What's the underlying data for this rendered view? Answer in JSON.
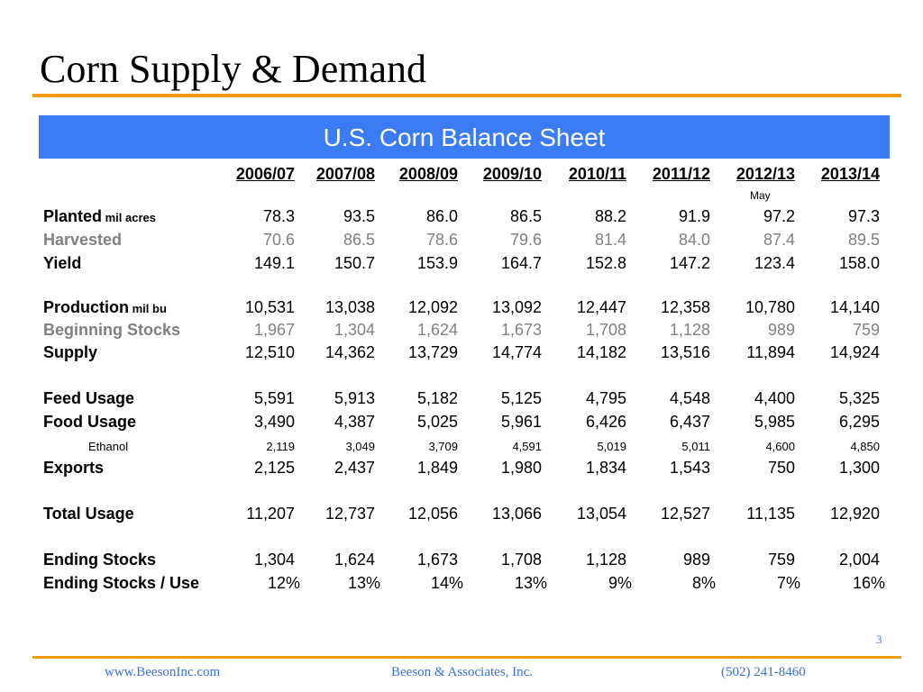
{
  "title": "Corn Supply & Demand",
  "band_title": "U.S. Corn Balance Sheet",
  "columns": [
    "2006/07",
    "2007/08",
    "2008/09",
    "2009/10",
    "2010/11",
    "2011/12",
    "2012/13",
    "2013/14"
  ],
  "col_note": "May",
  "rows": [
    {
      "label": "Planted",
      "unit": "mil acres",
      "values": [
        "78.3",
        "93.5",
        "86.0",
        "86.5",
        "88.2",
        "91.9",
        "97.2",
        "97.3"
      ]
    },
    {
      "label": "Harvested",
      "values": [
        "70.6",
        "86.5",
        "78.6",
        "79.6",
        "81.4",
        "84.0",
        "87.4",
        "89.5"
      ]
    },
    {
      "label": "Yield",
      "values": [
        "149.1",
        "150.7",
        "153.9",
        "164.7",
        "152.8",
        "147.2",
        "123.4",
        "158.0"
      ]
    },
    {
      "label": "Production",
      "unit": "mil bu",
      "values": [
        "10,531",
        "13,038",
        "12,092",
        "13,092",
        "12,447",
        "12,358",
        "10,780",
        "14,140"
      ]
    },
    {
      "label": "Beginning Stocks",
      "values": [
        "1,967",
        "1,304",
        "1,624",
        "1,673",
        "1,708",
        "1,128",
        "989",
        "759"
      ]
    },
    {
      "label": "Supply",
      "values": [
        "12,510",
        "14,362",
        "13,729",
        "14,774",
        "14,182",
        "13,516",
        "11,894",
        "14,924"
      ]
    },
    {
      "label": "Feed Usage",
      "values": [
        "5,591",
        "5,913",
        "5,182",
        "5,125",
        "4,795",
        "4,548",
        "4,400",
        "5,325"
      ]
    },
    {
      "label": "Food Usage",
      "values": [
        "3,490",
        "4,387",
        "5,025",
        "5,961",
        "6,426",
        "6,437",
        "5,985",
        "6,295"
      ]
    },
    {
      "label": "Ethanol",
      "values": [
        "2,119",
        "3,049",
        "3,709",
        "4,591",
        "5,019",
        "5,011",
        "4,600",
        "4,850"
      ]
    },
    {
      "label": "Exports",
      "values": [
        "2,125",
        "2,437",
        "1,849",
        "1,980",
        "1,834",
        "1,543",
        "750",
        "1,300"
      ]
    },
    {
      "label": "Total Usage",
      "values": [
        "11,207",
        "12,737",
        "12,056",
        "13,066",
        "13,054",
        "12,527",
        "11,135",
        "12,920"
      ]
    },
    {
      "label": "Ending Stocks",
      "values": [
        "1,304",
        "1,624",
        "1,673",
        "1,708",
        "1,128",
        "989",
        "759",
        "2,004"
      ]
    },
    {
      "label": "Ending Stocks / Use",
      "values": [
        "12%",
        "13%",
        "14%",
        "13%",
        "9%",
        "8%",
        "7%",
        "16%"
      ]
    }
  ],
  "page_number": "3",
  "footer": {
    "left": "www.BeesonInc.com",
    "center": "Beeson & Associates, Inc.",
    "right": "(502) 241-8460"
  },
  "colors": {
    "accent_orange": "#f39c12",
    "band_blue": "#3b7cf5",
    "gray_text": "#808080"
  }
}
